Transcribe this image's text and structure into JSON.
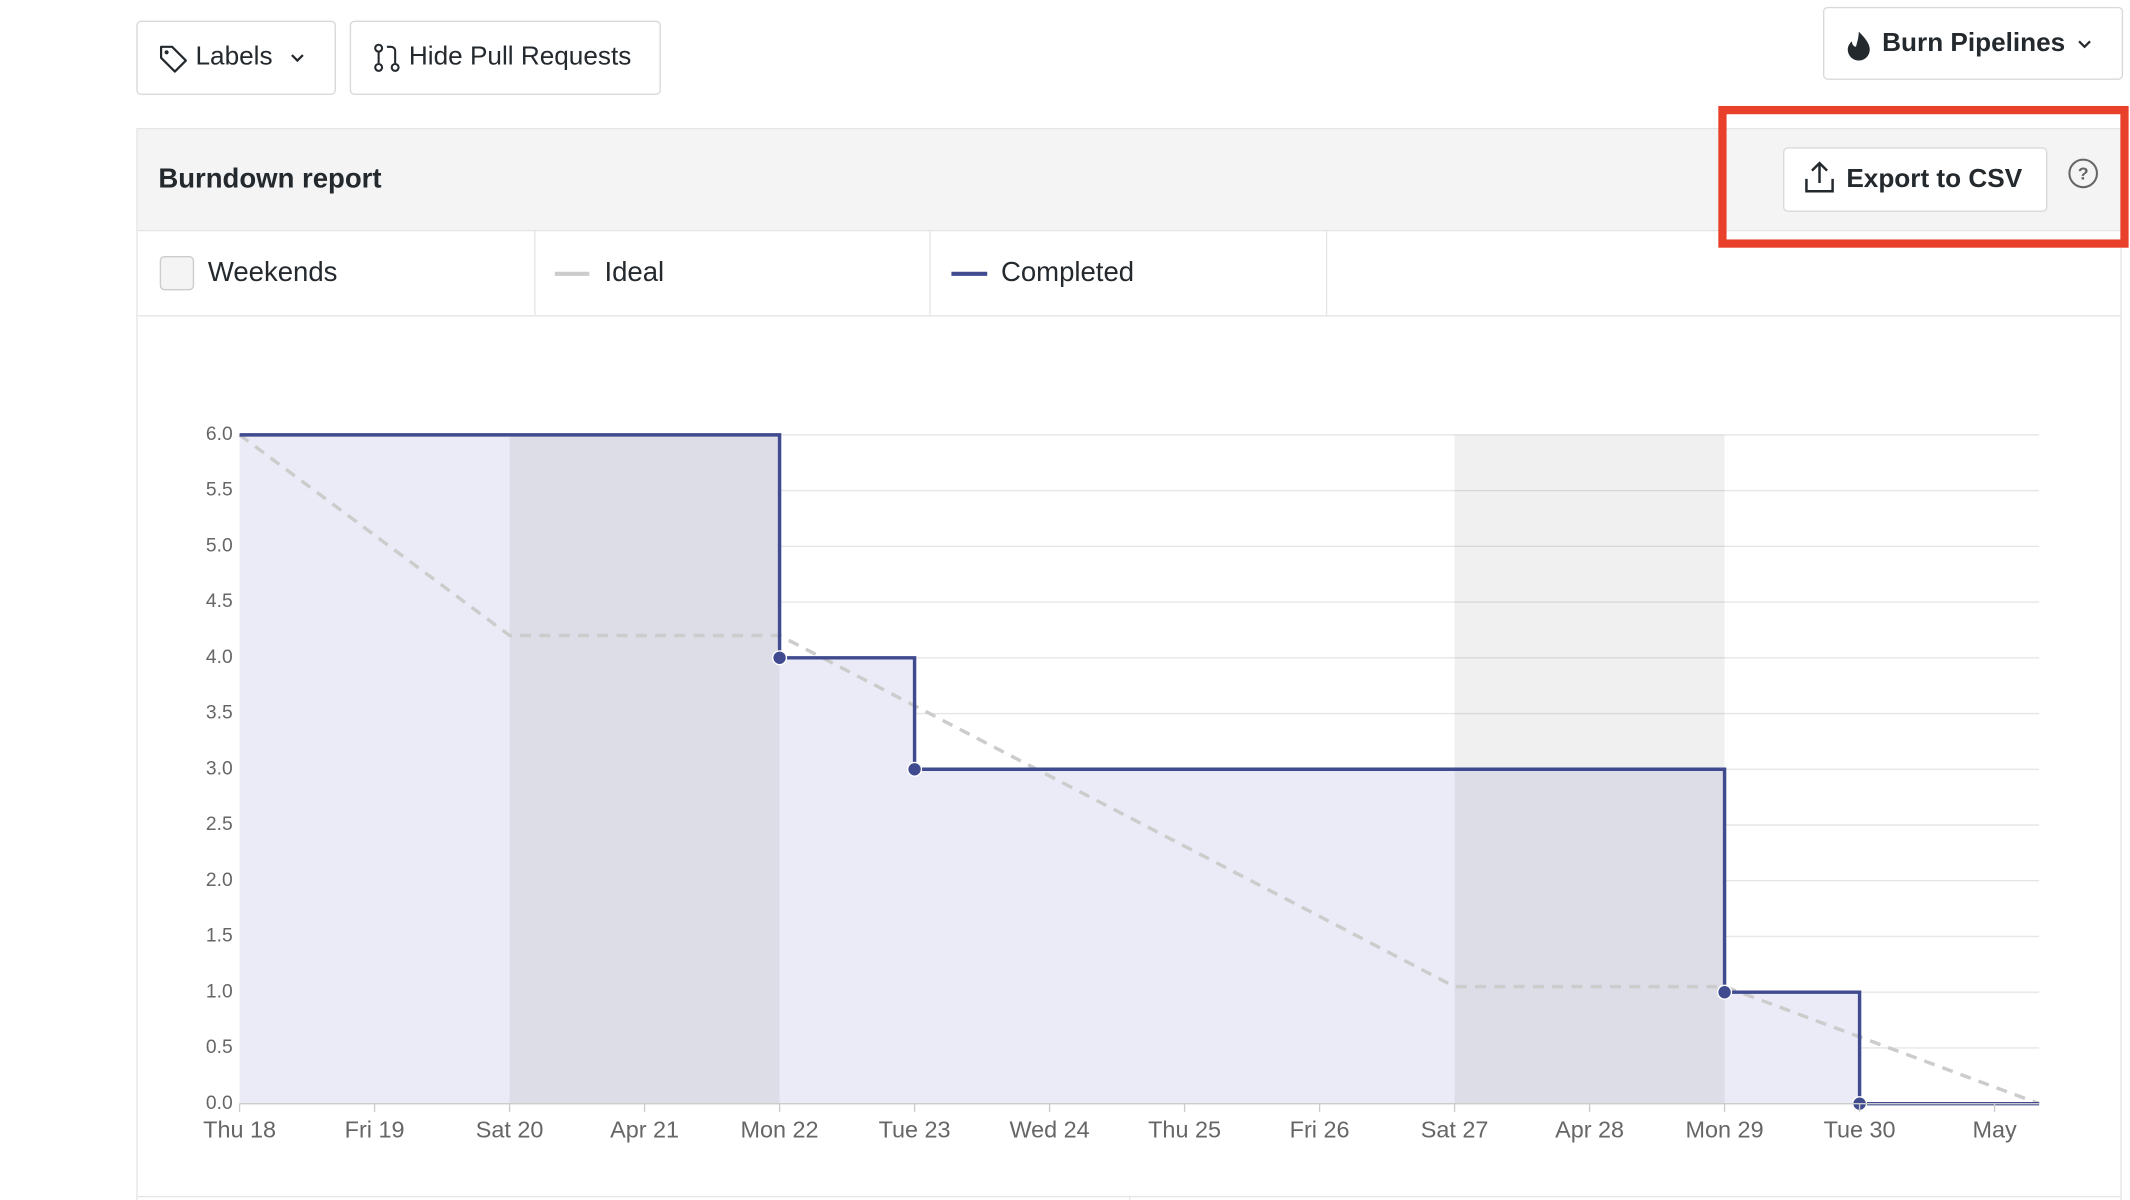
{
  "toolbar": {
    "labels": "Labels",
    "hide_prs": "Hide Pull Requests",
    "burn": "Burn Pipelines"
  },
  "panel": {
    "title": "Burndown report",
    "export": "Export to CSV"
  },
  "chart_data": {
    "type": "line",
    "weekends": {
      "name": "Weekends",
      "ranges": [
        [
          2,
          4
        ],
        [
          9,
          11
        ]
      ]
    },
    "xlim": [
      0,
      13.33
    ],
    "xticks": [
      {
        "value": 0,
        "label": "Thu 18"
      },
      {
        "value": 1,
        "label": "Fri 19"
      },
      {
        "value": 2,
        "label": "Sat 20"
      },
      {
        "value": 3,
        "label": "Apr 21"
      },
      {
        "value": 4,
        "label": "Mon 22"
      },
      {
        "value": 5,
        "label": "Tue 23"
      },
      {
        "value": 6,
        "label": "Wed 24"
      },
      {
        "value": 7,
        "label": "Thu 25"
      },
      {
        "value": 8,
        "label": "Fri 26"
      },
      {
        "value": 9,
        "label": "Sat 27"
      },
      {
        "value": 10,
        "label": "Apr 28"
      },
      {
        "value": 11,
        "label": "Mon 29"
      },
      {
        "value": 12,
        "label": "Tue 30"
      },
      {
        "value": 13,
        "label": "May"
      }
    ],
    "ylim": [
      0,
      6
    ],
    "yticks": [
      {
        "value": 0,
        "label": "0.0"
      },
      {
        "value": 0.5,
        "label": "0.5"
      },
      {
        "value": 1,
        "label": "1.0"
      },
      {
        "value": 1.5,
        "label": "1.5"
      },
      {
        "value": 2,
        "label": "2.0"
      },
      {
        "value": 2.5,
        "label": "2.5"
      },
      {
        "value": 3,
        "label": "3.0"
      },
      {
        "value": 3.5,
        "label": "3.5"
      },
      {
        "value": 4,
        "label": "4.0"
      },
      {
        "value": 4.5,
        "label": "4.5"
      },
      {
        "value": 5,
        "label": "5.0"
      },
      {
        "value": 5.5,
        "label": "5.5"
      },
      {
        "value": 6,
        "label": "6.0"
      }
    ],
    "grid": true,
    "series": [
      {
        "name": "Ideal",
        "color": "#cccccc",
        "dashed": true,
        "step": false,
        "x": [
          0,
          2,
          4,
          9,
          11,
          13.33
        ],
        "values": [
          6,
          4.2,
          4.2,
          1.05,
          1.05,
          0
        ]
      },
      {
        "name": "Completed",
        "color": "#3f4a8f",
        "dashed": false,
        "step": true,
        "fill": "#ebebf7",
        "x": [
          0,
          4,
          5,
          11,
          12,
          13.33
        ],
        "values": [
          6,
          4,
          3,
          1,
          0,
          0
        ]
      }
    ]
  }
}
